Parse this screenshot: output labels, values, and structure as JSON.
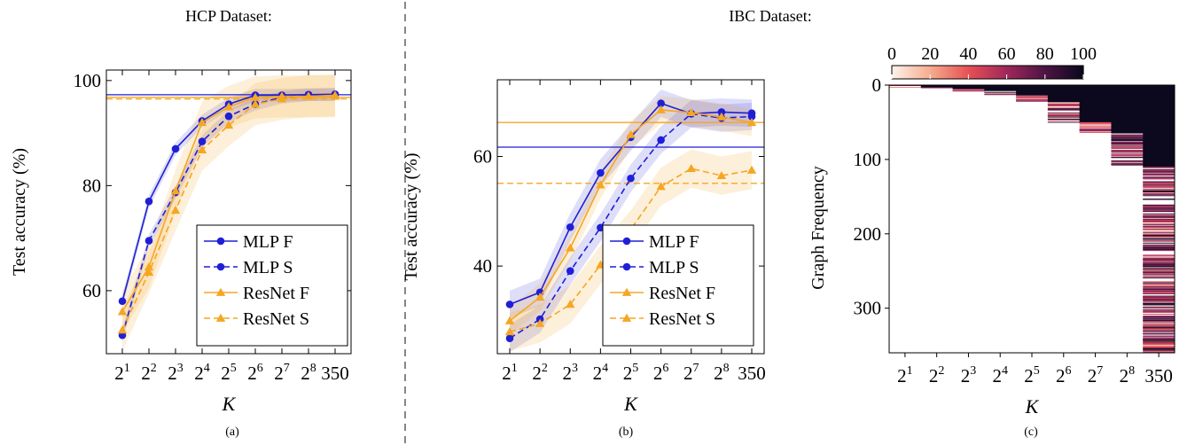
{
  "headers": {
    "hcp": "HCP Dataset:",
    "ibc": "IBC Dataset:"
  },
  "x_categories": [
    {
      "base": "2",
      "exp": "1"
    },
    {
      "base": "2",
      "exp": "2"
    },
    {
      "base": "2",
      "exp": "3"
    },
    {
      "base": "2",
      "exp": "4"
    },
    {
      "base": "2",
      "exp": "5"
    },
    {
      "base": "2",
      "exp": "6"
    },
    {
      "base": "2",
      "exp": "7"
    },
    {
      "base": "2",
      "exp": "8"
    },
    {
      "base": "350",
      "exp": ""
    }
  ],
  "colors": {
    "mlp": "#1f1fd6",
    "resnet": "#f5a623",
    "dashline": "#444444"
  },
  "chart_data": [
    {
      "type": "line",
      "panel": "(a)",
      "xlabel": "K",
      "ylabel": "Test accuracy (%)",
      "ylim": [
        48,
        102
      ],
      "yticks": [
        60,
        80,
        100
      ],
      "legend_placement": "bottom-right",
      "reference_lines": [
        {
          "model": "mlp",
          "style": "solid",
          "y": 97.3
        },
        {
          "model": "resnet",
          "style": "solid",
          "y": 96.8
        },
        {
          "model": "resnet",
          "style": "dashed",
          "y": 96.5
        }
      ],
      "series": [
        {
          "name": "MLP F",
          "model": "mlp",
          "style": "solid",
          "marker": "circle",
          "band": 1.2,
          "values": [
            58,
            77,
            87,
            92.3,
            95.5,
            97.2,
            97.2,
            97.3,
            97.4
          ]
        },
        {
          "name": "MLP S",
          "model": "mlp",
          "style": "dashed",
          "marker": "circle",
          "band": 1.2,
          "values": [
            51.5,
            69.5,
            78.7,
            88.4,
            93.2,
            95.5,
            96.8,
            97.3,
            97.3
          ]
        },
        {
          "name": "ResNet F",
          "model": "resnet",
          "style": "solid",
          "marker": "triangle",
          "band": 4,
          "values": [
            56,
            64.5,
            79,
            92,
            95,
            96.8,
            97,
            97,
            97.2
          ]
        },
        {
          "name": "ResNet S",
          "model": "resnet",
          "style": "dashed",
          "marker": "triangle",
          "band": 4,
          "values": [
            52.5,
            63.5,
            75.3,
            86.8,
            91.5,
            95.5,
            96.5,
            97,
            97
          ]
        }
      ]
    },
    {
      "type": "line",
      "panel": "(b)",
      "xlabel": "K",
      "ylabel": "Test accuracy (%)",
      "ylim": [
        24,
        74
      ],
      "yticks": [
        40,
        60
      ],
      "legend_placement": "bottom-right",
      "reference_lines": [
        {
          "model": "resnet",
          "style": "solid",
          "y": 66.2
        },
        {
          "model": "mlp",
          "style": "solid",
          "y": 61.7
        },
        {
          "model": "resnet",
          "style": "dashed",
          "y": 55.1
        }
      ],
      "series": [
        {
          "name": "MLP F",
          "model": "mlp",
          "style": "solid",
          "marker": "circle",
          "band": 2.5,
          "values": [
            33,
            35.2,
            47.1,
            57,
            63.5,
            69.7,
            67.8,
            68.1,
            67.9
          ]
        },
        {
          "name": "MLP S",
          "model": "mlp",
          "style": "dashed",
          "marker": "circle",
          "band": 2.5,
          "values": [
            26.8,
            30.3,
            39.1,
            47,
            56,
            63,
            67.8,
            67,
            67.3
          ]
        },
        {
          "name": "ResNet F",
          "model": "resnet",
          "style": "solid",
          "marker": "triangle",
          "band": 2.5,
          "values": [
            30,
            34.3,
            43.3,
            54.8,
            64,
            68.5,
            68,
            67.2,
            66.2
          ]
        },
        {
          "name": "ResNet S",
          "model": "resnet",
          "style": "dashed",
          "marker": "triangle",
          "band": 3.5,
          "values": [
            28,
            29.5,
            33,
            40.2,
            46.7,
            54.5,
            57.8,
            56.5,
            57.5
          ]
        }
      ]
    },
    {
      "type": "heatmap",
      "panel": "(c)",
      "xlabel": "K",
      "ylabel": "Graph Frequency",
      "ylim": [
        0,
        360
      ],
      "yticks": [
        0,
        100,
        200,
        300
      ],
      "colorbar": {
        "range": [
          0,
          100
        ],
        "ticks": [
          0,
          20,
          40,
          60,
          80,
          100
        ]
      },
      "column_cutoffs": [
        3,
        5,
        8,
        14,
        23,
        50,
        65,
        110,
        360
      ]
    }
  ]
}
